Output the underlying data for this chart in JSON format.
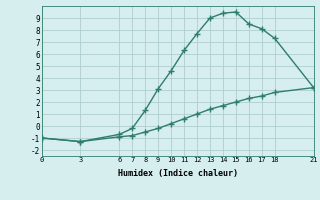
{
  "xlabel": "Humidex (Indice chaleur)",
  "upper_x": [
    0,
    3,
    6,
    7,
    8,
    9,
    10,
    11,
    12,
    13,
    14,
    15,
    16,
    17,
    18,
    21
  ],
  "upper_y": [
    -1,
    -1.3,
    -0.7,
    -0.2,
    1.3,
    3.1,
    4.6,
    6.3,
    7.7,
    9.0,
    9.4,
    9.5,
    8.5,
    8.1,
    7.3,
    3.2
  ],
  "lower_x": [
    0,
    3,
    6,
    7,
    8,
    9,
    10,
    11,
    12,
    13,
    14,
    15,
    16,
    17,
    18,
    21
  ],
  "lower_y": [
    -1,
    -1.3,
    -0.9,
    -0.8,
    -0.5,
    -0.2,
    0.2,
    0.6,
    1.0,
    1.4,
    1.7,
    2.0,
    2.3,
    2.5,
    2.8,
    3.2
  ],
  "line_color": "#2e7d6e",
  "bg_color": "#d6eeee",
  "grid_color": "#b0cece",
  "xlim": [
    0,
    21
  ],
  "ylim": [
    -2.5,
    10
  ],
  "xticks": [
    0,
    3,
    6,
    7,
    8,
    9,
    10,
    11,
    12,
    13,
    14,
    15,
    16,
    17,
    18,
    21
  ],
  "yticks": [
    -2,
    -1,
    0,
    1,
    2,
    3,
    4,
    5,
    6,
    7,
    8,
    9
  ],
  "marker": "+"
}
